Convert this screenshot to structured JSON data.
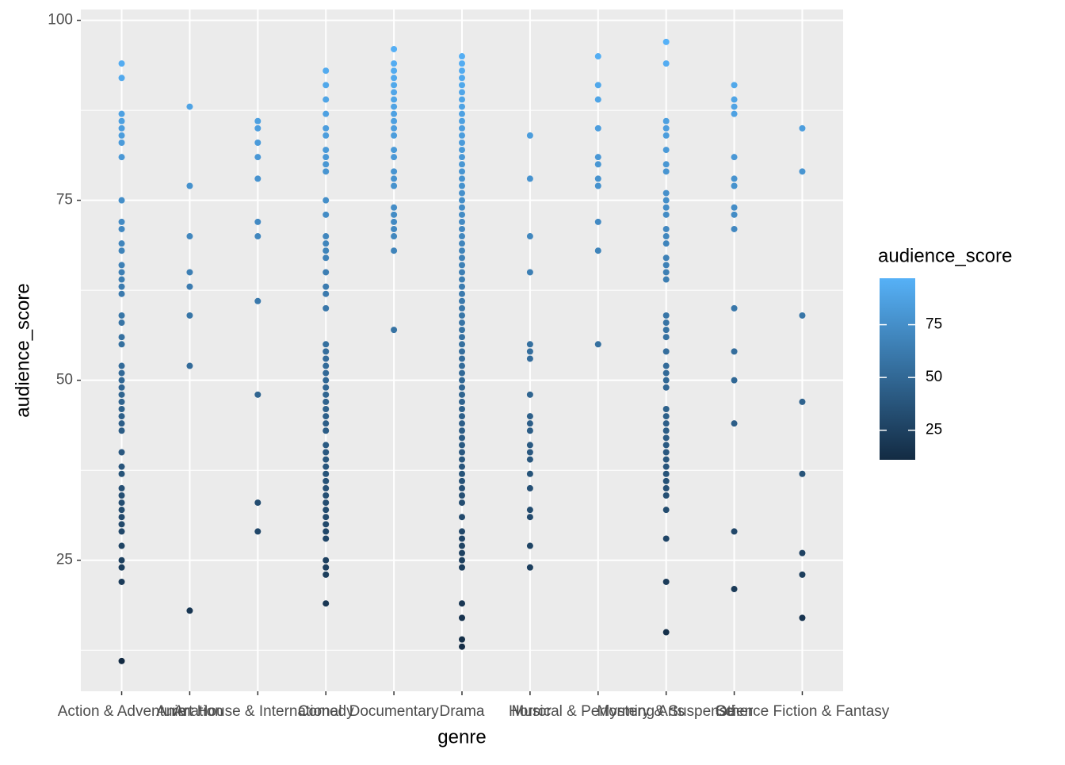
{
  "chart_data": {
    "type": "scatter",
    "x_label": "genre",
    "y_label": "audience_score",
    "categories": [
      "Action & Adventure",
      "Animation",
      "Art House & International",
      "Comedy",
      "Documentary",
      "Drama",
      "Horror",
      "Musical & Performing Arts",
      "Mystery & Suspense",
      "Other",
      "Science Fiction & Fantasy"
    ],
    "values": [
      [
        94,
        92,
        87,
        86,
        85,
        84,
        83,
        81,
        75,
        72,
        71,
        69,
        68,
        66,
        65,
        64,
        63,
        62,
        59,
        58,
        56,
        55,
        52,
        51,
        50,
        49,
        48,
        47,
        46,
        45,
        44,
        43,
        40,
        38,
        37,
        35,
        34,
        33,
        32,
        31,
        30,
        29,
        27,
        25,
        24,
        22,
        11
      ],
      [
        88,
        77,
        70,
        65,
        63,
        59,
        52,
        18
      ],
      [
        86,
        85,
        83,
        81,
        78,
        72,
        70,
        61,
        48,
        33,
        29
      ],
      [
        93,
        91,
        89,
        87,
        85,
        84,
        82,
        81,
        80,
        79,
        75,
        73,
        70,
        69,
        68,
        67,
        65,
        63,
        62,
        60,
        55,
        54,
        53,
        52,
        51,
        50,
        49,
        48,
        47,
        46,
        45,
        44,
        43,
        41,
        40,
        39,
        38,
        37,
        36,
        35,
        34,
        33,
        32,
        31,
        30,
        29,
        28,
        25,
        24,
        23,
        19
      ],
      [
        96,
        94,
        93,
        92,
        91,
        90,
        89,
        88,
        87,
        86,
        85,
        84,
        82,
        81,
        79,
        78,
        77,
        74,
        73,
        72,
        71,
        70,
        68,
        57
      ],
      [
        95,
        94,
        93,
        92,
        91,
        90,
        89,
        88,
        87,
        86,
        85,
        84,
        83,
        82,
        81,
        80,
        79,
        78,
        77,
        76,
        75,
        74,
        73,
        72,
        71,
        70,
        69,
        68,
        67,
        66,
        65,
        64,
        63,
        62,
        61,
        60,
        59,
        58,
        57,
        56,
        55,
        54,
        53,
        52,
        51,
        50,
        49,
        48,
        47,
        46,
        45,
        44,
        43,
        42,
        41,
        40,
        39,
        38,
        37,
        36,
        35,
        34,
        33,
        31,
        29,
        28,
        27,
        26,
        25,
        24,
        19,
        17,
        14,
        13
      ],
      [
        84,
        78,
        70,
        65,
        55,
        54,
        53,
        48,
        45,
        44,
        43,
        41,
        40,
        39,
        37,
        35,
        32,
        31,
        27,
        24
      ],
      [
        95,
        91,
        89,
        85,
        81,
        80,
        78,
        77,
        72,
        68,
        55
      ],
      [
        97,
        94,
        86,
        85,
        84,
        82,
        80,
        79,
        76,
        75,
        74,
        73,
        71,
        70,
        69,
        67,
        66,
        65,
        64,
        59,
        58,
        57,
        56,
        54,
        52,
        51,
        50,
        49,
        46,
        45,
        44,
        43,
        42,
        41,
        40,
        39,
        38,
        37,
        36,
        35,
        34,
        32,
        28,
        22,
        15
      ],
      [
        91,
        89,
        88,
        87,
        81,
        78,
        77,
        74,
        73,
        71,
        60,
        54,
        50,
        44,
        29,
        21
      ],
      [
        85,
        79,
        59,
        47,
        37,
        26,
        23,
        17
      ]
    ],
    "ylim": [
      6.8,
      101.5
    ],
    "yticks": [
      25,
      50,
      75,
      100
    ],
    "minor_yticks": [
      12.5,
      37.5,
      62.5,
      87.5
    ],
    "grid": true,
    "color_low": "#132B43",
    "color_high": "#56B1F7",
    "legend_title": "audience_score",
    "legend_ticks": [
      25,
      50,
      75
    ]
  }
}
